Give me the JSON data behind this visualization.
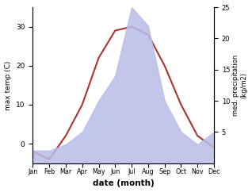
{
  "months": [
    "Jan",
    "Feb",
    "Mar",
    "Apr",
    "May",
    "Jun",
    "Jul",
    "Aug",
    "Sep",
    "Oct",
    "Nov",
    "Dec"
  ],
  "temperature": [
    -2,
    -4,
    2,
    10,
    22,
    29,
    30,
    28,
    20,
    10,
    2,
    -1
  ],
  "precipitation": [
    2,
    2,
    3,
    5,
    10,
    14,
    25,
    22,
    10,
    5,
    3,
    5
  ],
  "temp_color": "#aa3333",
  "precip_fill_color": "#b8bce8",
  "ylabel_left": "max temp (C)",
  "ylabel_right": "med. precipitation\n(kg/m2)",
  "xlabel": "date (month)",
  "ylim_left": [
    -5,
    35
  ],
  "ylim_right": [
    0,
    25
  ],
  "yticks_left": [
    0,
    10,
    20,
    30
  ],
  "yticks_right": [
    5,
    10,
    15,
    20,
    25
  ],
  "background_color": "#ffffff"
}
